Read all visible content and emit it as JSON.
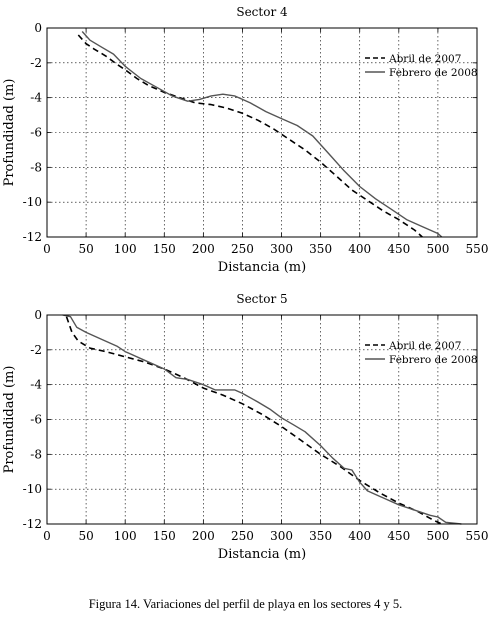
{
  "caption": "Figura 14. Variaciones del perfil de playa en los sectores 4 y 5.",
  "chart_data": [
    {
      "type": "line",
      "title": "Sector 4",
      "xlabel": "Distancia (m)",
      "ylabel": "Profundidad (m)",
      "xlim": [
        0,
        550
      ],
      "ylim": [
        -12,
        0
      ],
      "xticks": [
        "0",
        "50",
        "100",
        "150",
        "200",
        "250",
        "300",
        "350",
        "400",
        "450",
        "500",
        "550"
      ],
      "yticks": [
        "0",
        "-2",
        "-4",
        "-6",
        "-8",
        "-10",
        "-12"
      ],
      "grid": true,
      "legend": "top-right",
      "series": [
        {
          "name": "Abril de 2007",
          "style": "dashed",
          "color": "#000000",
          "points": [
            [
              40,
              -0.4
            ],
            [
              50,
              -0.9
            ],
            [
              60,
              -1.2
            ],
            [
              75,
              -1.6
            ],
            [
              90,
              -2.1
            ],
            [
              100,
              -2.4
            ],
            [
              115,
              -2.9
            ],
            [
              130,
              -3.3
            ],
            [
              150,
              -3.7
            ],
            [
              170,
              -4.0
            ],
            [
              190,
              -4.3
            ],
            [
              210,
              -4.4
            ],
            [
              230,
              -4.6
            ],
            [
              250,
              -4.9
            ],
            [
              270,
              -5.3
            ],
            [
              290,
              -5.8
            ],
            [
              310,
              -6.4
            ],
            [
              330,
              -7.0
            ],
            [
              350,
              -7.7
            ],
            [
              370,
              -8.5
            ],
            [
              390,
              -9.3
            ],
            [
              410,
              -9.9
            ],
            [
              430,
              -10.5
            ],
            [
              450,
              -11.0
            ],
            [
              470,
              -11.6
            ],
            [
              480,
              -12.0
            ]
          ]
        },
        {
          "name": "Febrero de 2008",
          "style": "solid",
          "color": "#555555",
          "points": [
            [
              45,
              -0.2
            ],
            [
              55,
              -0.7
            ],
            [
              70,
              -1.1
            ],
            [
              85,
              -1.5
            ],
            [
              100,
              -2.2
            ],
            [
              120,
              -2.9
            ],
            [
              140,
              -3.4
            ],
            [
              160,
              -3.9
            ],
            [
              180,
              -4.2
            ],
            [
              195,
              -4.1
            ],
            [
              210,
              -3.9
            ],
            [
              225,
              -3.8
            ],
            [
              240,
              -3.9
            ],
            [
              260,
              -4.3
            ],
            [
              280,
              -4.8
            ],
            [
              300,
              -5.2
            ],
            [
              320,
              -5.6
            ],
            [
              340,
              -6.2
            ],
            [
              360,
              -7.2
            ],
            [
              380,
              -8.2
            ],
            [
              400,
              -9.1
            ],
            [
              420,
              -9.8
            ],
            [
              440,
              -10.4
            ],
            [
              460,
              -11.0
            ],
            [
              480,
              -11.4
            ],
            [
              500,
              -11.8
            ],
            [
              505,
              -12.0
            ]
          ]
        }
      ]
    },
    {
      "type": "line",
      "title": "Sector 5",
      "xlabel": "Distancia (m)",
      "ylabel": "Profundidad (m)",
      "xlim": [
        0,
        550
      ],
      "ylim": [
        -12,
        0
      ],
      "xticks": [
        "0",
        "50",
        "100",
        "150",
        "200",
        "250",
        "300",
        "350",
        "400",
        "450",
        "500",
        "550"
      ],
      "yticks": [
        "0",
        "-2",
        "-4",
        "-6",
        "-8",
        "-10",
        "-12"
      ],
      "grid": true,
      "legend": "top-right",
      "series": [
        {
          "name": "Abril de 2007",
          "style": "dashed",
          "color": "#000000",
          "points": [
            [
              25,
              -0.1
            ],
            [
              32,
              -1.0
            ],
            [
              40,
              -1.5
            ],
            [
              55,
              -1.9
            ],
            [
              75,
              -2.1
            ],
            [
              100,
              -2.4
            ],
            [
              125,
              -2.7
            ],
            [
              150,
              -3.1
            ],
            [
              175,
              -3.6
            ],
            [
              200,
              -4.2
            ],
            [
              225,
              -4.6
            ],
            [
              250,
              -5.1
            ],
            [
              275,
              -5.7
            ],
            [
              300,
              -6.4
            ],
            [
              325,
              -7.2
            ],
            [
              350,
              -8.0
            ],
            [
              375,
              -8.7
            ],
            [
              400,
              -9.5
            ],
            [
              425,
              -10.2
            ],
            [
              450,
              -10.8
            ],
            [
              475,
              -11.3
            ],
            [
              495,
              -11.8
            ],
            [
              505,
              -12.0
            ]
          ]
        },
        {
          "name": "Febrero de 2008",
          "style": "solid",
          "color": "#555555",
          "points": [
            [
              20,
              0.0
            ],
            [
              30,
              -0.1
            ],
            [
              38,
              -0.7
            ],
            [
              50,
              -1.0
            ],
            [
              70,
              -1.4
            ],
            [
              90,
              -1.8
            ],
            [
              100,
              -2.1
            ],
            [
              125,
              -2.6
            ],
            [
              150,
              -3.1
            ],
            [
              165,
              -3.6
            ],
            [
              180,
              -3.7
            ],
            [
              200,
              -4.0
            ],
            [
              215,
              -4.3
            ],
            [
              240,
              -4.3
            ],
            [
              250,
              -4.5
            ],
            [
              270,
              -5.0
            ],
            [
              285,
              -5.4
            ],
            [
              300,
              -5.9
            ],
            [
              315,
              -6.3
            ],
            [
              330,
              -6.7
            ],
            [
              350,
              -7.5
            ],
            [
              365,
              -8.2
            ],
            [
              380,
              -8.8
            ],
            [
              390,
              -8.9
            ],
            [
              400,
              -9.6
            ],
            [
              410,
              -10.1
            ],
            [
              430,
              -10.5
            ],
            [
              450,
              -10.9
            ],
            [
              470,
              -11.2
            ],
            [
              490,
              -11.5
            ],
            [
              500,
              -11.6
            ],
            [
              510,
              -11.9
            ],
            [
              530,
              -12.0
            ]
          ]
        }
      ]
    }
  ]
}
